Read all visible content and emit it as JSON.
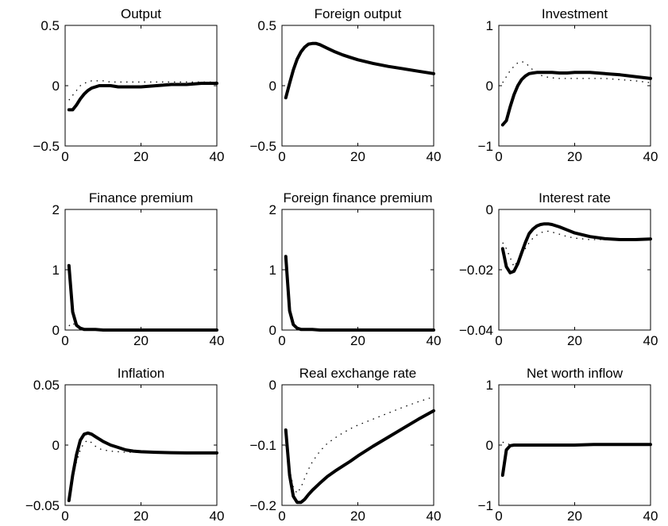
{
  "chart_data": [
    {
      "type": "line",
      "title": "Output",
      "xlim": [
        0,
        40
      ],
      "ylim": [
        -0.5,
        0.5
      ],
      "xticks": [
        0,
        20,
        40
      ],
      "xtick_labels": [
        "0",
        "20",
        "40"
      ],
      "yticks": [
        -0.5,
        0,
        0.5
      ],
      "ytick_labels": [
        "−0.5",
        "0",
        "0.5"
      ],
      "series": [
        {
          "style": "solid",
          "x": [
            1,
            2,
            3,
            4,
            5,
            6,
            7,
            8,
            9,
            10,
            12,
            14,
            16,
            18,
            20,
            24,
            28,
            32,
            36,
            40
          ],
          "y": [
            -0.2,
            -0.2,
            -0.16,
            -0.11,
            -0.07,
            -0.04,
            -0.02,
            -0.01,
            0,
            0,
            0,
            -0.01,
            -0.01,
            -0.01,
            -0.01,
            0,
            0.01,
            0.01,
            0.02,
            0.02
          ]
        },
        {
          "style": "dotted",
          "x": [
            1,
            2,
            3,
            4,
            5,
            6,
            7,
            8,
            9,
            10,
            12,
            14,
            16,
            18,
            20,
            24,
            28,
            32,
            36,
            40
          ],
          "y": [
            -0.12,
            -0.08,
            -0.04,
            0,
            0.02,
            0.03,
            0.04,
            0.04,
            0.04,
            0.04,
            0.03,
            0.03,
            0.03,
            0.03,
            0.03,
            0.03,
            0.03,
            0.03,
            0.03,
            0.03
          ]
        }
      ]
    },
    {
      "type": "line",
      "title": "Foreign output",
      "xlim": [
        0,
        40
      ],
      "ylim": [
        -0.5,
        0.5
      ],
      "xticks": [
        0,
        20,
        40
      ],
      "xtick_labels": [
        "0",
        "20",
        "40"
      ],
      "yticks": [
        -0.5,
        0,
        0.5
      ],
      "ytick_labels": [
        "−0.5",
        "0",
        "0.5"
      ],
      "series": [
        {
          "style": "solid",
          "x": [
            1,
            2,
            3,
            4,
            5,
            6,
            7,
            8,
            9,
            10,
            12,
            14,
            16,
            18,
            20,
            24,
            28,
            32,
            36,
            40
          ],
          "y": [
            -0.1,
            0.02,
            0.13,
            0.22,
            0.28,
            0.32,
            0.345,
            0.35,
            0.35,
            0.34,
            0.31,
            0.28,
            0.255,
            0.235,
            0.215,
            0.185,
            0.16,
            0.14,
            0.12,
            0.1
          ]
        },
        {
          "style": "dotted",
          "x": [
            1,
            2,
            3,
            4,
            5,
            6,
            7,
            8,
            9,
            10,
            12,
            14,
            16,
            18,
            20,
            24,
            28,
            32,
            36,
            40
          ],
          "y": [
            -0.1,
            0.02,
            0.13,
            0.22,
            0.28,
            0.32,
            0.345,
            0.35,
            0.35,
            0.34,
            0.31,
            0.28,
            0.255,
            0.235,
            0.215,
            0.185,
            0.16,
            0.14,
            0.12,
            0.1
          ]
        }
      ]
    },
    {
      "type": "line",
      "title": "Investment",
      "xlim": [
        0,
        40
      ],
      "ylim": [
        -1,
        1
      ],
      "xticks": [
        0,
        20,
        40
      ],
      "xtick_labels": [
        "0",
        "20",
        "40"
      ],
      "yticks": [
        -1,
        0,
        1
      ],
      "ytick_labels": [
        "−1",
        "0",
        "1"
      ],
      "series": [
        {
          "style": "solid",
          "x": [
            1,
            2,
            3,
            4,
            5,
            6,
            7,
            8,
            9,
            10,
            12,
            14,
            16,
            18,
            20,
            24,
            28,
            32,
            36,
            40
          ],
          "y": [
            -0.65,
            -0.58,
            -0.35,
            -0.15,
            0,
            0.1,
            0.16,
            0.2,
            0.21,
            0.22,
            0.22,
            0.22,
            0.21,
            0.21,
            0.22,
            0.22,
            0.2,
            0.18,
            0.15,
            0.12
          ]
        },
        {
          "style": "dotted",
          "x": [
            1,
            2,
            3,
            4,
            5,
            6,
            7,
            8,
            9,
            10,
            12,
            14,
            16,
            18,
            20,
            24,
            28,
            32,
            36,
            40
          ],
          "y": [
            0.05,
            0.15,
            0.25,
            0.32,
            0.38,
            0.4,
            0.38,
            0.32,
            0.26,
            0.2,
            0.15,
            0.13,
            0.12,
            0.12,
            0.12,
            0.12,
            0.12,
            0.1,
            0.08,
            0.05
          ]
        }
      ]
    },
    {
      "type": "line",
      "title": "Finance premium",
      "xlim": [
        0,
        40
      ],
      "ylim": [
        0,
        2
      ],
      "xticks": [
        0,
        20,
        40
      ],
      "xtick_labels": [
        "0",
        "20",
        "40"
      ],
      "yticks": [
        0,
        1,
        2
      ],
      "ytick_labels": [
        "0",
        "1",
        "2"
      ],
      "series": [
        {
          "style": "solid",
          "x": [
            1,
            2,
            3,
            4,
            5,
            6,
            8,
            10,
            15,
            20,
            25,
            30,
            35,
            40
          ],
          "y": [
            1.07,
            0.3,
            0.08,
            0.03,
            0.01,
            0.01,
            0.01,
            0,
            0,
            0,
            0,
            0,
            0,
            0
          ]
        },
        {
          "style": "dotted",
          "x": [
            1,
            2,
            3,
            4,
            5,
            6,
            8,
            10,
            15,
            20,
            25,
            30,
            35,
            40
          ],
          "y": [
            0.07,
            0.12,
            0.05,
            0.02,
            0.01,
            0,
            0,
            0,
            0,
            0,
            0,
            0,
            0,
            0
          ]
        }
      ]
    },
    {
      "type": "line",
      "title": "Foreign finance premium",
      "xlim": [
        0,
        40
      ],
      "ylim": [
        0,
        2
      ],
      "xticks": [
        0,
        20,
        40
      ],
      "xtick_labels": [
        "0",
        "20",
        "40"
      ],
      "yticks": [
        0,
        1,
        2
      ],
      "ytick_labels": [
        "0",
        "1",
        "2"
      ],
      "series": [
        {
          "style": "solid",
          "x": [
            1,
            2,
            3,
            4,
            5,
            6,
            8,
            10,
            15,
            20,
            25,
            30,
            35,
            40
          ],
          "y": [
            1.22,
            0.32,
            0.09,
            0.03,
            0.01,
            0.01,
            0.01,
            0,
            0,
            0,
            0,
            0,
            0,
            0
          ]
        },
        {
          "style": "dotted",
          "x": [
            1,
            2,
            3,
            4,
            5,
            6,
            8,
            10,
            15,
            20,
            25,
            30,
            35,
            40
          ],
          "y": [
            1.22,
            0.32,
            0.09,
            0.03,
            0.01,
            0.01,
            0.01,
            0,
            0,
            0,
            0,
            0,
            0,
            0
          ]
        }
      ]
    },
    {
      "type": "line",
      "title": "Interest rate",
      "xlim": [
        0,
        40
      ],
      "ylim": [
        -0.04,
        0
      ],
      "xticks": [
        0,
        20,
        40
      ],
      "xtick_labels": [
        "0",
        "20",
        "40"
      ],
      "yticks": [
        -0.04,
        -0.02,
        0
      ],
      "ytick_labels": [
        "−0.04",
        "−0.02",
        "0"
      ],
      "series": [
        {
          "style": "solid",
          "x": [
            1,
            2,
            3,
            4,
            5,
            6,
            7,
            8,
            9,
            10,
            11,
            12,
            13,
            14,
            16,
            18,
            20,
            24,
            28,
            32,
            36,
            40
          ],
          "y": [
            -0.013,
            -0.019,
            -0.021,
            -0.0205,
            -0.018,
            -0.0145,
            -0.011,
            -0.008,
            -0.0065,
            -0.0055,
            -0.005,
            -0.0048,
            -0.0048,
            -0.005,
            -0.0058,
            -0.0068,
            -0.0078,
            -0.009,
            -0.0097,
            -0.01,
            -0.01,
            -0.0098
          ]
        },
        {
          "style": "dotted",
          "x": [
            1,
            2,
            3,
            4,
            5,
            6,
            7,
            8,
            9,
            10,
            11,
            12,
            13,
            14,
            16,
            18,
            20,
            24,
            28,
            32,
            36,
            40
          ],
          "y": [
            -0.011,
            -0.013,
            -0.016,
            -0.019,
            -0.017,
            -0.015,
            -0.013,
            -0.011,
            -0.0095,
            -0.0085,
            -0.0078,
            -0.0073,
            -0.0072,
            -0.0075,
            -0.0082,
            -0.009,
            -0.0095,
            -0.01,
            -0.01,
            -0.0101,
            -0.0101,
            -0.01
          ]
        }
      ]
    },
    {
      "type": "line",
      "title": "Inflation",
      "xlim": [
        0,
        40
      ],
      "ylim": [
        -0.05,
        0.05
      ],
      "xticks": [
        0,
        20,
        40
      ],
      "xtick_labels": [
        "0",
        "20",
        "40"
      ],
      "yticks": [
        -0.05,
        0,
        0.05
      ],
      "ytick_labels": [
        "−0.05",
        "0",
        "0.05"
      ],
      "series": [
        {
          "style": "solid",
          "x": [
            1,
            2,
            3,
            4,
            5,
            6,
            7,
            8,
            9,
            10,
            12,
            14,
            16,
            18,
            20,
            24,
            28,
            32,
            36,
            40
          ],
          "y": [
            -0.046,
            -0.025,
            -0.008,
            0.004,
            0.009,
            0.01,
            0.009,
            0.007,
            0.005,
            0.003,
            0,
            -0.002,
            -0.004,
            -0.005,
            -0.0055,
            -0.006,
            -0.0063,
            -0.0065,
            -0.0065,
            -0.0065
          ]
        },
        {
          "style": "dotted",
          "x": [
            1,
            2,
            3,
            4,
            5,
            6,
            7,
            8,
            9,
            10,
            12,
            14,
            16,
            18,
            20,
            24,
            28,
            32,
            36,
            40
          ],
          "y": [
            -0.044,
            -0.028,
            -0.014,
            -0.004,
            0.002,
            0.004,
            0.002,
            -0.001,
            -0.003,
            -0.004,
            -0.005,
            -0.0055,
            -0.006,
            -0.006,
            -0.006,
            -0.006,
            -0.006,
            -0.006,
            -0.006,
            -0.006
          ]
        }
      ]
    },
    {
      "type": "line",
      "title": "Real exchange rate",
      "xlim": [
        0,
        40
      ],
      "ylim": [
        -0.2,
        0
      ],
      "xticks": [
        0,
        20,
        40
      ],
      "xtick_labels": [
        "0",
        "20",
        "40"
      ],
      "yticks": [
        -0.2,
        -0.1,
        0
      ],
      "ytick_labels": [
        "−0.2",
        "−0.1",
        "0"
      ],
      "series": [
        {
          "style": "solid",
          "x": [
            1,
            2,
            3,
            4,
            5,
            6,
            7,
            8,
            10,
            12,
            14,
            16,
            18,
            20,
            24,
            28,
            32,
            36,
            40
          ],
          "y": [
            -0.075,
            -0.15,
            -0.185,
            -0.195,
            -0.195,
            -0.19,
            -0.182,
            -0.175,
            -0.163,
            -0.152,
            -0.143,
            -0.135,
            -0.127,
            -0.118,
            -0.102,
            -0.087,
            -0.072,
            -0.057,
            -0.043
          ]
        },
        {
          "style": "dotted",
          "x": [
            1,
            2,
            3,
            4,
            5,
            6,
            7,
            8,
            10,
            12,
            14,
            16,
            18,
            20,
            24,
            28,
            32,
            36,
            40
          ],
          "y": [
            -0.1,
            -0.14,
            -0.17,
            -0.18,
            -0.17,
            -0.155,
            -0.14,
            -0.128,
            -0.11,
            -0.097,
            -0.088,
            -0.08,
            -0.073,
            -0.067,
            -0.057,
            -0.047,
            -0.037,
            -0.028,
            -0.02
          ]
        }
      ]
    },
    {
      "type": "line",
      "title": "Net worth inflow",
      "xlim": [
        0,
        40
      ],
      "ylim": [
        -1,
        1
      ],
      "xticks": [
        0,
        20,
        40
      ],
      "xtick_labels": [
        "0",
        "20",
        "40"
      ],
      "yticks": [
        -1,
        0,
        1
      ],
      "ytick_labels": [
        "−1",
        "0",
        "1"
      ],
      "series": [
        {
          "style": "solid",
          "x": [
            1,
            2,
            3,
            4,
            5,
            6,
            8,
            10,
            15,
            20,
            25,
            30,
            35,
            40
          ],
          "y": [
            -0.5,
            -0.08,
            -0.01,
            0,
            0,
            0,
            0,
            0,
            0,
            0,
            0.01,
            0.01,
            0.01,
            0.01
          ]
        },
        {
          "style": "dotted",
          "x": [
            1,
            2,
            3,
            4,
            5,
            6,
            8,
            10,
            15,
            20,
            25,
            30,
            35,
            40
          ],
          "y": [
            0.05,
            0.02,
            0.01,
            0,
            0,
            0,
            0,
            0,
            0,
            0,
            0,
            0,
            0,
            0
          ]
        }
      ]
    }
  ]
}
